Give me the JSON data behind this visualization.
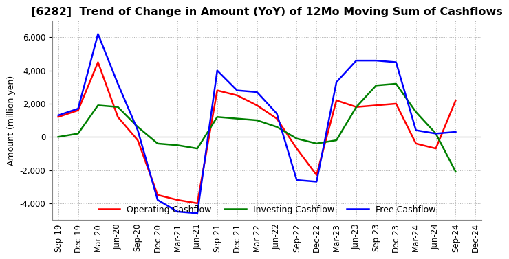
{
  "title": "[6282]  Trend of Change in Amount (YoY) of 12Mo Moving Sum of Cashflows",
  "ylabel": "Amount (million yen)",
  "title_fontsize": 11.5,
  "label_fontsize": 9,
  "tick_fontsize": 8.5,
  "ylim": [
    -5000,
    7000
  ],
  "yticks": [
    -4000,
    -2000,
    0,
    2000,
    4000,
    6000
  ],
  "x_labels": [
    "Sep-19",
    "Dec-19",
    "Mar-20",
    "Jun-20",
    "Sep-20",
    "Dec-20",
    "Mar-21",
    "Jun-21",
    "Sep-21",
    "Dec-21",
    "Mar-22",
    "Jun-22",
    "Sep-22",
    "Dec-22",
    "Mar-23",
    "Jun-23",
    "Sep-23",
    "Dec-23",
    "Mar-24",
    "Jun-24",
    "Sep-24",
    "Dec-24"
  ],
  "operating": [
    1200,
    1600,
    4500,
    1200,
    -200,
    -3500,
    -3800,
    -4000,
    2800,
    2500,
    1900,
    1100,
    -700,
    -2300,
    2200,
    1800,
    1900,
    2000,
    -400,
    -700,
    2200,
    null
  ],
  "investing": [
    0,
    200,
    1900,
    1800,
    600,
    -400,
    -500,
    -700,
    1200,
    1100,
    1000,
    600,
    -100,
    -400,
    -200,
    1800,
    3100,
    3200,
    1500,
    200,
    -2100,
    null
  ],
  "free": [
    1300,
    1700,
    6200,
    3200,
    400,
    -3800,
    -4500,
    -4600,
    4000,
    2800,
    2700,
    1400,
    -2600,
    -2700,
    3300,
    4600,
    4600,
    4500,
    400,
    200,
    300,
    null
  ],
  "op_color": "#ff0000",
  "inv_color": "#008000",
  "free_color": "#0000ff",
  "bg_color": "#ffffff",
  "grid_color": "#b0b0b0",
  "legend_labels": [
    "Operating Cashflow",
    "Investing Cashflow",
    "Free Cashflow"
  ]
}
